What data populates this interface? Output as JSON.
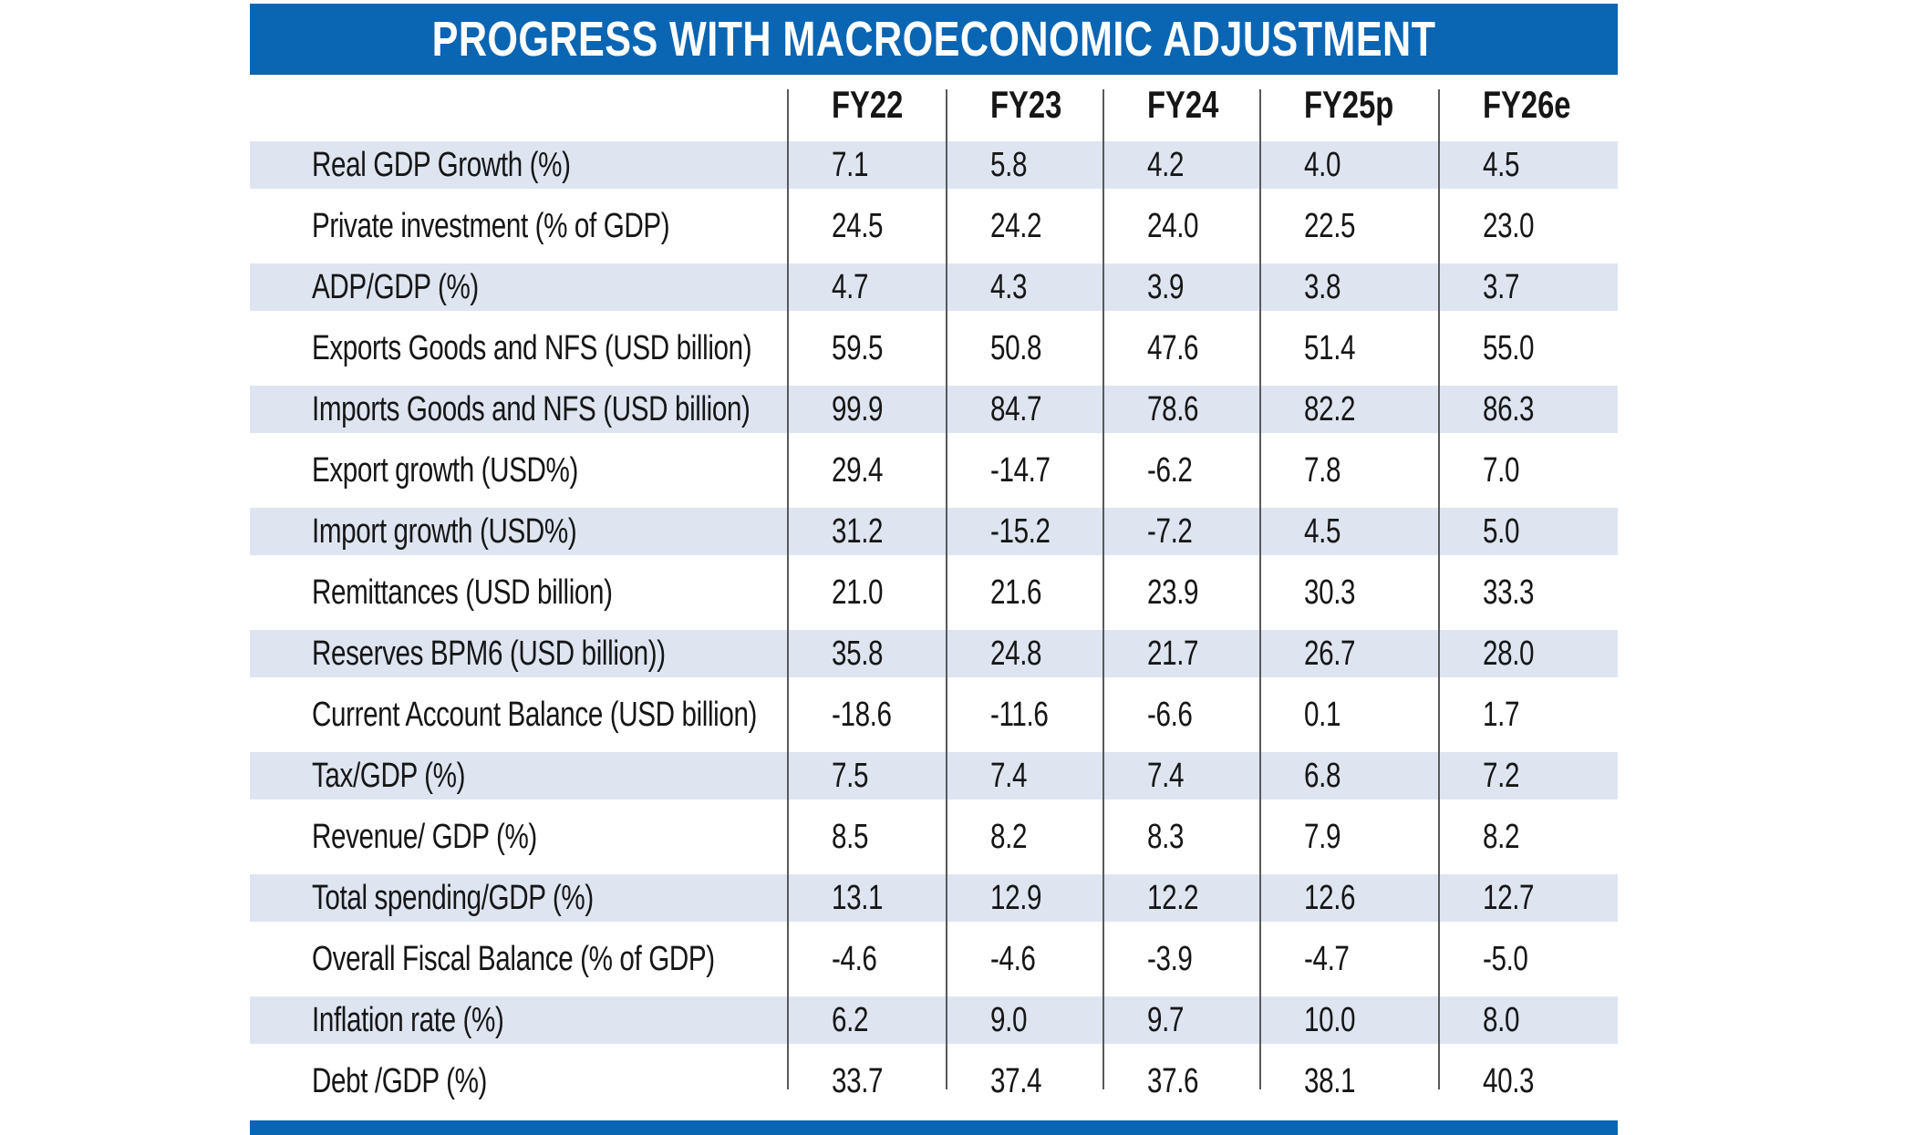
{
  "title": "PROGRESS WITH MACROECONOMIC ADJUSTMENT",
  "colors": {
    "accent_blue": "#0a65b3",
    "row_shade": "#dee5f1",
    "divider_gray": "#58595b",
    "title_text": "#ffffff"
  },
  "chart_data": {
    "type": "table",
    "title": "PROGRESS WITH MACROECONOMIC ADJUSTMENT",
    "columns": [
      "FY22",
      "FY23",
      "FY24",
      "FY25p",
      "FY26e"
    ],
    "rows": [
      {
        "label": "Real GDP Growth (%)",
        "values": [
          "7.1",
          "5.8",
          "4.2",
          "4.0",
          "4.5"
        ]
      },
      {
        "label": "Private investment (% of GDP)",
        "values": [
          "24.5",
          "24.2",
          "24.0",
          "22.5",
          "23.0"
        ]
      },
      {
        "label": "ADP/GDP (%)",
        "values": [
          "4.7",
          "4.3",
          "3.9",
          "3.8",
          "3.7"
        ]
      },
      {
        "label": "Exports Goods and NFS (USD billion)",
        "values": [
          "59.5",
          "50.8",
          "47.6",
          "51.4",
          "55.0"
        ]
      },
      {
        "label": "Imports Goods and NFS (USD billion)",
        "values": [
          "99.9",
          "84.7",
          "78.6",
          "82.2",
          "86.3"
        ]
      },
      {
        "label": "Export growth (USD%)",
        "values": [
          "29.4",
          "-14.7",
          "-6.2",
          "7.8",
          "7.0"
        ]
      },
      {
        "label": "Import growth (USD%)",
        "values": [
          "31.2",
          "-15.2",
          "-7.2",
          "4.5",
          "5.0"
        ]
      },
      {
        "label": "Remittances (USD billion)",
        "values": [
          "21.0",
          "21.6",
          "23.9",
          "30.3",
          "33.3"
        ]
      },
      {
        "label": "Reserves BPM6 (USD billion))",
        "values": [
          "35.8",
          "24.8",
          "21.7",
          "26.7",
          "28.0"
        ]
      },
      {
        "label": "Current Account Balance (USD billion)",
        "values": [
          "-18.6",
          "-11.6",
          "-6.6",
          "0.1",
          "1.7"
        ]
      },
      {
        "label": "Tax/GDP (%)",
        "values": [
          "7.5",
          "7.4",
          "7.4",
          "6.8",
          "7.2"
        ]
      },
      {
        "label": "Revenue/ GDP (%)",
        "values": [
          "8.5",
          "8.2",
          "8.3",
          "7.9",
          "8.2"
        ]
      },
      {
        "label": "Total spending/GDP (%)",
        "values": [
          "13.1",
          "12.9",
          "12.2",
          "12.6",
          "12.7"
        ]
      },
      {
        "label": "Overall Fiscal Balance (% of GDP)",
        "values": [
          "-4.6",
          "-4.6",
          "-3.9",
          "-4.7",
          "-5.0"
        ]
      },
      {
        "label": "Inflation rate (%)",
        "values": [
          "6.2",
          "9.0",
          "9.7",
          "10.0",
          "8.0"
        ]
      },
      {
        "label": "Debt /GDP (%)",
        "values": [
          "33.7",
          "37.4",
          "37.6",
          "38.1",
          "40.3"
        ]
      }
    ]
  }
}
